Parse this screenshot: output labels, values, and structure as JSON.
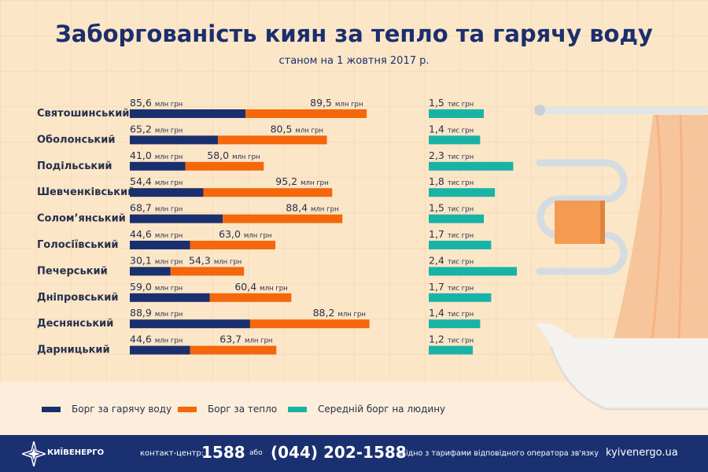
{
  "title": "Заборгованість киян за тепло та гарячу воду",
  "subtitle": "станом на 1 жовтня 2017 р.",
  "colors": {
    "hot_water": "#1a2f6e",
    "heat": "#f4670a",
    "per_person": "#19b3a6"
  },
  "chart_data": {
    "type": "bar",
    "title": "Заборгованість киян за тепло та гарячу воду",
    "subtitle": "станом на 1 жовтня 2017 р.",
    "categories": [
      "Святошинський",
      "Оболонський",
      "Подільський",
      "Шевченківський",
      "Солом’янський",
      "Голосіївський",
      "Печерський",
      "Дніпровський",
      "Деснянський",
      "Дарницький"
    ],
    "series": [
      {
        "name": "Борг за гарячу воду",
        "unit": "млн грн",
        "stacked": true,
        "values": [
          85.6,
          65.2,
          41.0,
          54.4,
          68.7,
          44.6,
          30.1,
          59.0,
          88.9,
          44.6
        ]
      },
      {
        "name": "Борг за тепло",
        "unit": "млн грн",
        "stacked": true,
        "values": [
          89.5,
          80.5,
          58.0,
          95.2,
          88.4,
          63.0,
          54.3,
          60.4,
          88.2,
          63.7
        ]
      },
      {
        "name": "Середній борг на людину",
        "unit": "тис грн",
        "values": [
          1.5,
          1.4,
          2.3,
          1.8,
          1.5,
          1.7,
          2.4,
          1.7,
          1.4,
          1.2
        ]
      }
    ],
    "legend": "bottom"
  },
  "footer": {
    "brand": "КИЇВЕНЕРГО",
    "contact_label": "контакт-центр:",
    "short_number": "1588",
    "or": "або",
    "phone": "(044) 202-1588",
    "note": "згідно з тарифами відповідного оператора зв'язку",
    "site": "kyivenergo.ua"
  }
}
